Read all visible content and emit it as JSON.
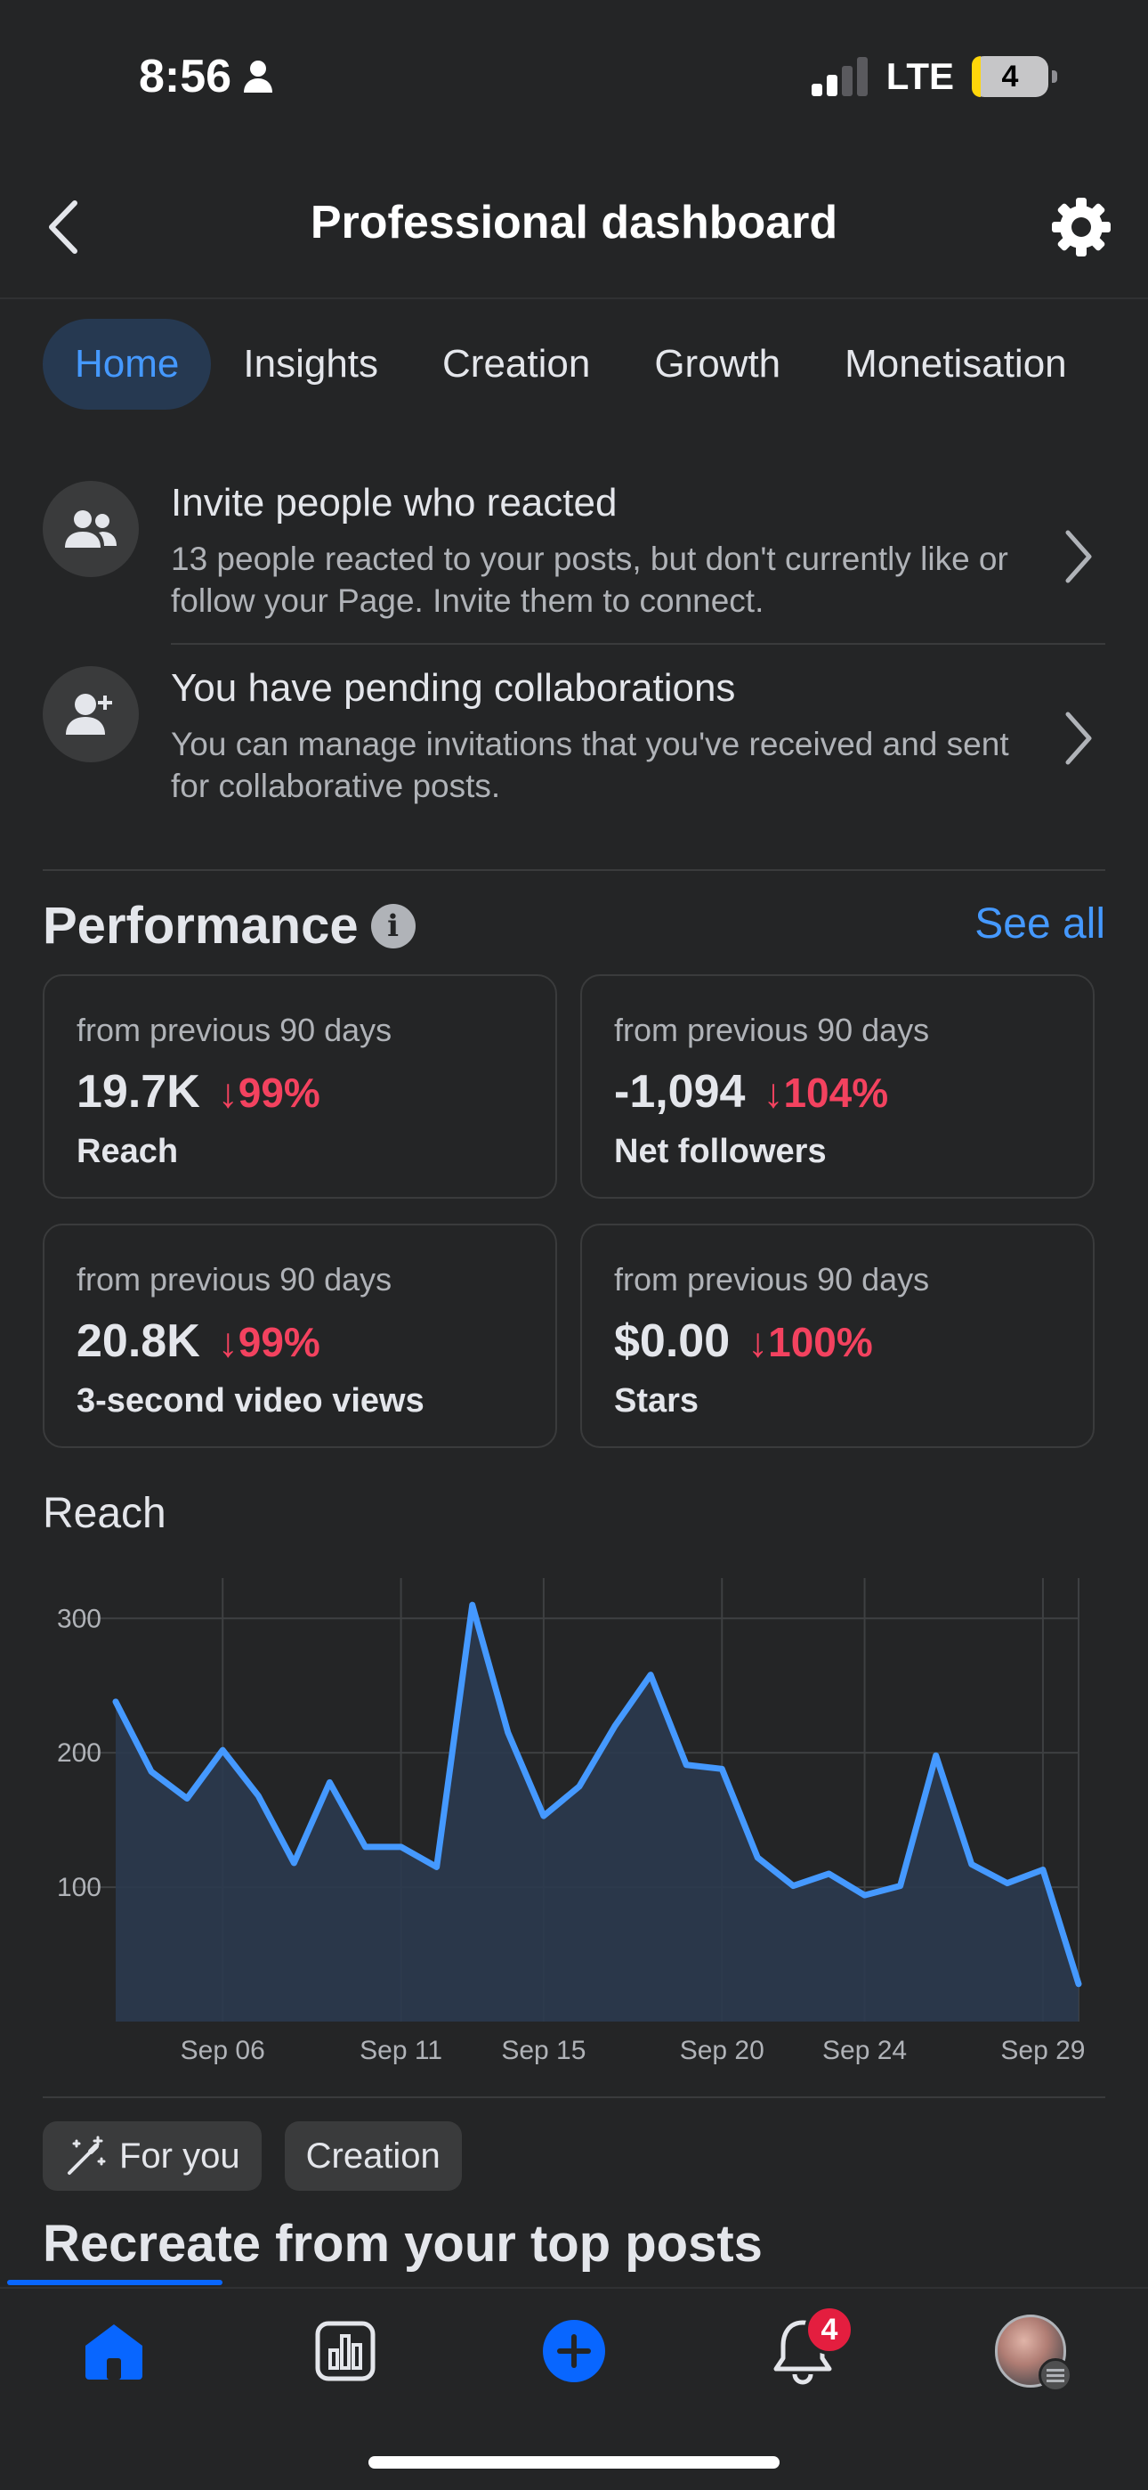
{
  "status": {
    "time": "8:56",
    "network": "LTE",
    "battery": "4"
  },
  "header": {
    "title": "Professional dashboard"
  },
  "tabs": [
    {
      "label": "Home",
      "active": true
    },
    {
      "label": "Insights"
    },
    {
      "label": "Creation"
    },
    {
      "label": "Growth"
    },
    {
      "label": "Monetisation"
    }
  ],
  "notifications": [
    {
      "title": "Invite people who reacted",
      "description": "13 people reacted to your posts, but don't currently like or follow your Page. Invite them to connect.",
      "icon": "people-icon"
    },
    {
      "title": "You have pending collaborations",
      "description": "You can manage invitations that you've received and sent for collaborative posts.",
      "icon": "add-person-icon"
    }
  ],
  "performance": {
    "title": "Performance",
    "see_all": "See all",
    "cards": [
      {
        "sub": "from previous 90 days",
        "value": "19.7K",
        "change": "↓99%",
        "label": "Reach"
      },
      {
        "sub": "from previous 90 days",
        "value": "-1,094",
        "change": "↓104%",
        "label": "Net followers"
      },
      {
        "sub": "from previous 90 days",
        "value": "20.8K",
        "change": "↓99%",
        "label": "3-second video views"
      },
      {
        "sub": "from previous 90 days",
        "value": "$0.00",
        "change": "↓100%",
        "label": "Stars"
      }
    ]
  },
  "chart_data": {
    "type": "area",
    "title": "Reach",
    "x": [
      "Sep 03",
      "Sep 04",
      "Sep 05",
      "Sep 06",
      "Sep 07",
      "Sep 08",
      "Sep 09",
      "Sep 10",
      "Sep 11",
      "Sep 12",
      "Sep 13",
      "Sep 14",
      "Sep 15",
      "Sep 16",
      "Sep 17",
      "Sep 18",
      "Sep 19",
      "Sep 20",
      "Sep 21",
      "Sep 22",
      "Sep 23",
      "Sep 24",
      "Sep 25",
      "Sep 26",
      "Sep 27",
      "Sep 28",
      "Sep 29",
      "Sep 30"
    ],
    "values": [
      238,
      186,
      166,
      202,
      168,
      118,
      178,
      130,
      130,
      115,
      310,
      215,
      153,
      175,
      220,
      258,
      191,
      188,
      122,
      101,
      110,
      94,
      101,
      198,
      117,
      103,
      113,
      28
    ],
    "x_ticks": [
      "Sep 06",
      "Sep 11",
      "Sep 15",
      "Sep 20",
      "Sep 24",
      "Sep 29"
    ],
    "y_ticks": [
      100,
      200,
      300
    ],
    "ylim": [
      0,
      330
    ],
    "grid": true,
    "color": "#4599ff",
    "fill": "#2b3a4f"
  },
  "chips": [
    {
      "label": "For you",
      "icon": "magic-wand-icon"
    },
    {
      "label": "Creation"
    }
  ],
  "section_title": "Recreate from your top posts",
  "nav": {
    "notification_count": "4"
  }
}
